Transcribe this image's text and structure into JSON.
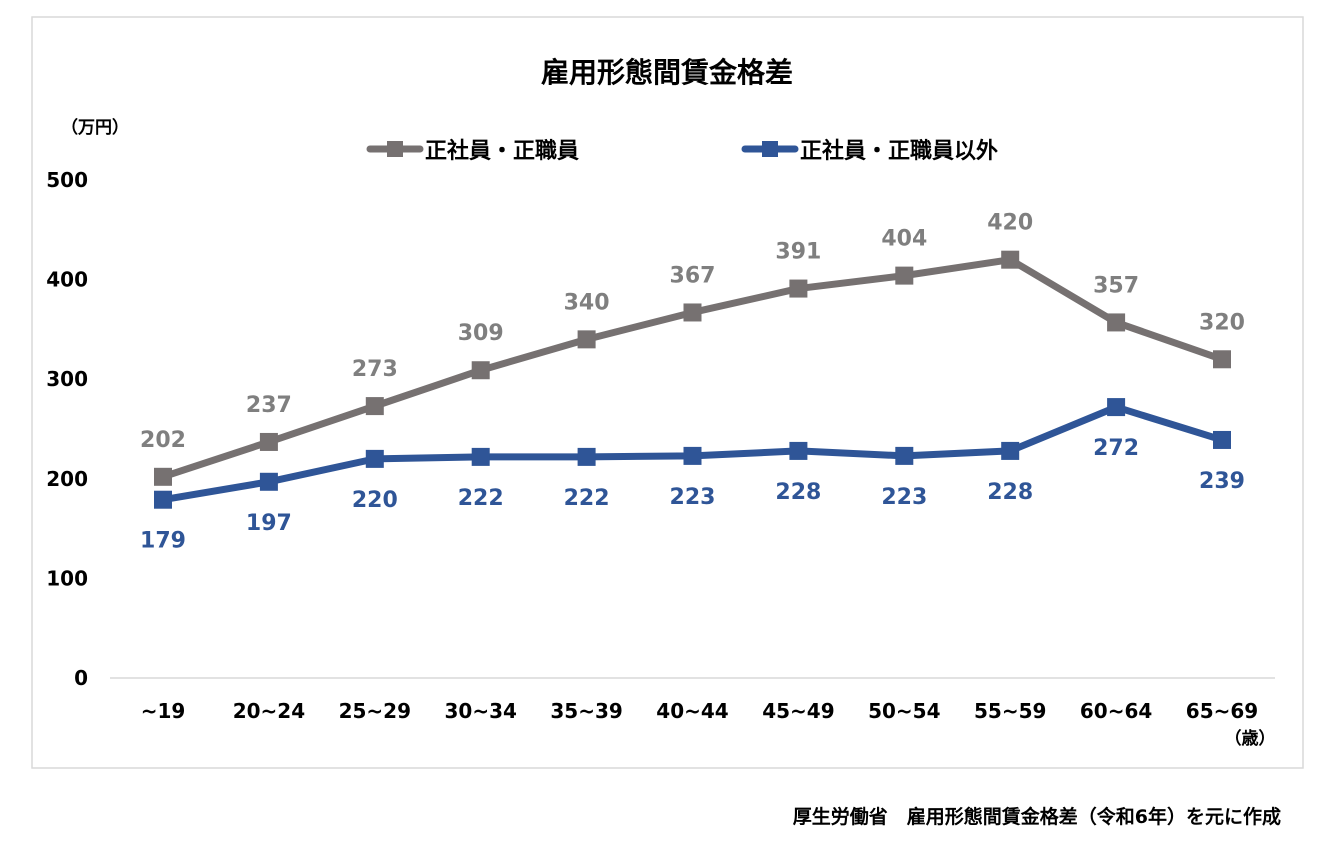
{
  "chart_data": {
    "type": "line",
    "title": "雇用形態間賃金格差",
    "ylabel": "（万円）",
    "xlabel": "（歳）",
    "ylim": [
      0,
      500
    ],
    "yticks": [
      0,
      100,
      200,
      300,
      400,
      500
    ],
    "grid": false,
    "legend_position": "top",
    "categories": [
      "~19",
      "20~24",
      "25~29",
      "30~34",
      "35~39",
      "40~44",
      "45~49",
      "50~54",
      "55~59",
      "60~64",
      "65~69"
    ],
    "series": [
      {
        "name": "正社員・正職員",
        "color": "#767171",
        "label_color": "#7F7F7F",
        "label_pos": "above",
        "values": [
          202,
          237,
          273,
          309,
          340,
          367,
          391,
          404,
          420,
          357,
          320
        ]
      },
      {
        "name": "正社員・正職員以外",
        "color": "#2F5597",
        "label_color": "#2F5597",
        "label_pos": "below",
        "values": [
          179,
          197,
          220,
          222,
          222,
          223,
          228,
          223,
          228,
          272,
          239
        ]
      }
    ]
  },
  "source_note": "厚生労働省　雇用形態間賃金格差（令和6年）を元に作成"
}
